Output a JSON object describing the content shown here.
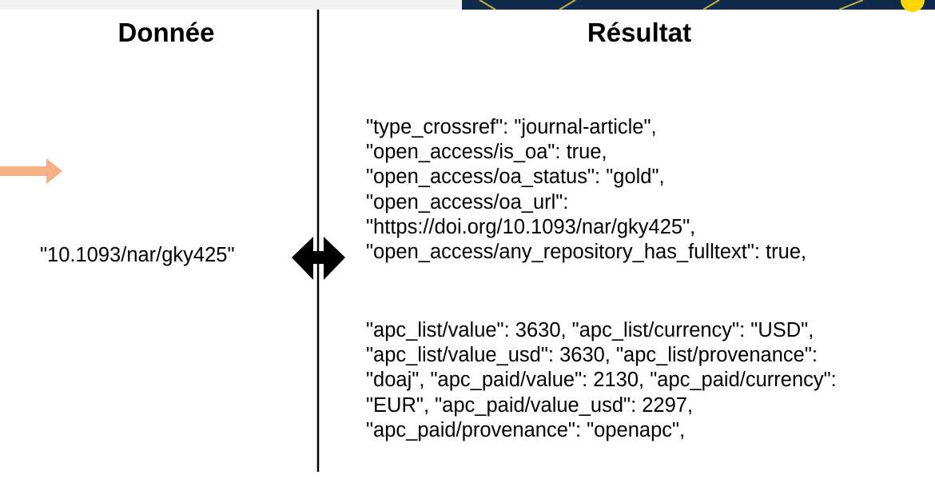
{
  "header": {
    "left": "Donnée",
    "right": "Résultat"
  },
  "input": "\"10.1093/nar/gky425\"",
  "result": {
    "blocks": [
      {
        "lines": [
          "\"type_crossref\": \"journal-article\",",
          "\"open_access/is_oa\": true,",
          "\"open_access/oa_status\": \"gold\",",
          "\"open_access/oa_url\":",
          "\"https://doi.org/10.1093/nar/gky425\",",
          "\"open_access/any_repository_has_fulltext\": true,"
        ]
      },
      {
        "lines": [
          "\"apc_list/value\": 3630, \"apc_list/currency\": \"USD\",",
          "\"apc_list/value_usd\": 3630, \"apc_list/provenance\":",
          "\"doaj\", \"apc_paid/value\": 2130, \"apc_paid/currency\":",
          "\"EUR\", \"apc_paid/value_usd\": 2297,",
          "\"apc_paid/provenance\": \"openapc\","
        ]
      }
    ]
  }
}
